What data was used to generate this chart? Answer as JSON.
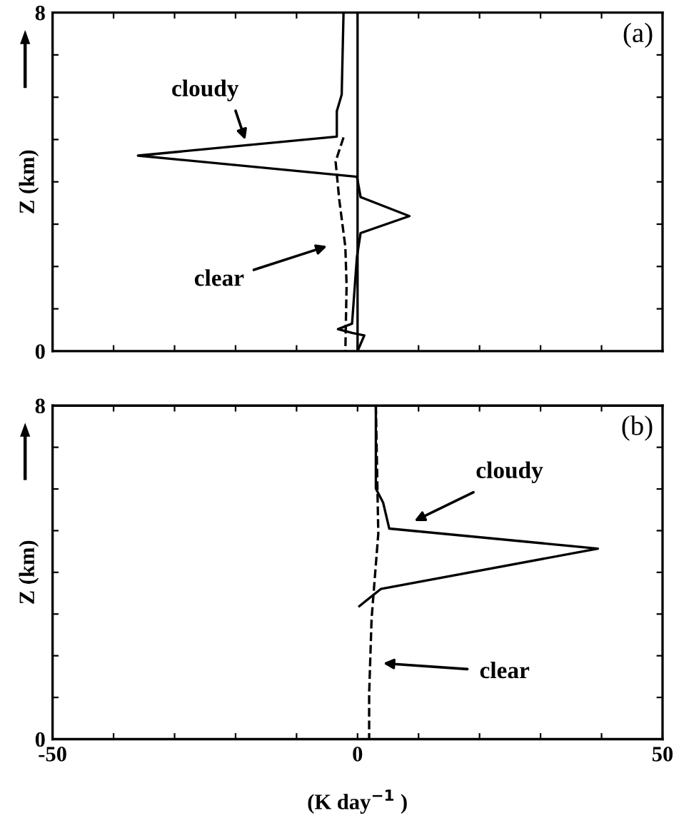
{
  "chart_data": [
    {
      "type": "line",
      "ylabel": "Z (km)",
      "xlim": [
        -50,
        50
      ],
      "ylim": [
        0,
        8
      ],
      "xticks": [
        {
          "value": -50,
          "label": null
        },
        {
          "value": -40,
          "label": null
        },
        {
          "value": -30,
          "label": null
        },
        {
          "value": -20,
          "label": null
        },
        {
          "value": -10,
          "label": null
        },
        {
          "value": 0,
          "label": null
        },
        {
          "value": 10,
          "label": null
        },
        {
          "value": 20,
          "label": null
        },
        {
          "value": 30,
          "label": null
        },
        {
          "value": 40,
          "label": null
        },
        {
          "value": 50,
          "label": null
        }
      ],
      "yticks": [
        0,
        {
          "value": 1,
          "label": null
        },
        {
          "value": 2,
          "label": null
        },
        {
          "value": 3,
          "label": null
        },
        {
          "value": 4,
          "label": null
        },
        {
          "value": 5,
          "label": null
        },
        {
          "value": 6,
          "label": null
        },
        {
          "value": 7,
          "label": null
        },
        8
      ],
      "tick_labels": "y",
      "grid": false,
      "ref_lines": [
        {
          "axis": "x",
          "value": 0,
          "color": "#000000",
          "line_style": "solid"
        }
      ],
      "series": [
        {
          "color": "#000000",
          "line_style": "solid",
          "x": [
            -2.3,
            -2.6,
            -3.4,
            -3.4,
            -36.0,
            -0.1,
            0.5,
            8.5,
            0.5,
            -0.1,
            -0.9,
            -3.2,
            -0.9,
            1.1,
            0
          ],
          "values": [
            8.0,
            6.06,
            5.67,
            5.07,
            4.62,
            4.12,
            3.64,
            3.19,
            2.79,
            2.23,
            0.65,
            0.52,
            0.43,
            0.37,
            0
          ]
        },
        {
          "color": "#000000",
          "line_style": "dashed",
          "x": [
            -2.3,
            -3.6,
            -3.0,
            -2.0,
            -1.8,
            -2.0
          ],
          "values": [
            5.05,
            4.48,
            3.58,
            2.46,
            1.56,
            0
          ]
        }
      ],
      "annotations": [
        "(a)",
        "cloudy",
        "clear"
      ]
    },
    {
      "type": "line",
      "ylabel": "Z (km)",
      "xlabel": "(K day$^{−1}$ )",
      "xlim": [
        -50,
        50
      ],
      "ylim": [
        0,
        8
      ],
      "xticks": [
        -50,
        {
          "value": -40,
          "label": null
        },
        {
          "value": -30,
          "label": null
        },
        {
          "value": -20,
          "label": null
        },
        {
          "value": -10,
          "label": null
        },
        0,
        {
          "value": 10,
          "label": null
        },
        {
          "value": 20,
          "label": null
        },
        {
          "value": 30,
          "label": null
        },
        {
          "value": 40,
          "label": null
        },
        50
      ],
      "yticks": [
        0,
        {
          "value": 1,
          "label": null
        },
        {
          "value": 2,
          "label": null
        },
        {
          "value": 3,
          "label": null
        },
        {
          "value": 4,
          "label": null
        },
        {
          "value": 5,
          "label": null
        },
        {
          "value": 6,
          "label": null
        },
        {
          "value": 7,
          "label": null
        },
        8
      ],
      "grid": false,
      "series": [
        {
          "color": "#000000",
          "line_style": "solid",
          "x": [
            3.0,
            3.0,
            4.2,
            5.2,
            39.4,
            3.8,
            0.3
          ],
          "values": [
            8.0,
            6.01,
            5.67,
            5.05,
            4.57,
            3.6,
            3.19
          ]
        },
        {
          "color": "#000000",
          "line_style": "dashed",
          "x": [
            3.0,
            3.4,
            2.3,
            1.9,
            1.9
          ],
          "values": [
            8.0,
            4.93,
            2.89,
            1.08,
            0
          ]
        }
      ],
      "annotations": [
        "(b)",
        "cloudy",
        "clear"
      ]
    }
  ]
}
